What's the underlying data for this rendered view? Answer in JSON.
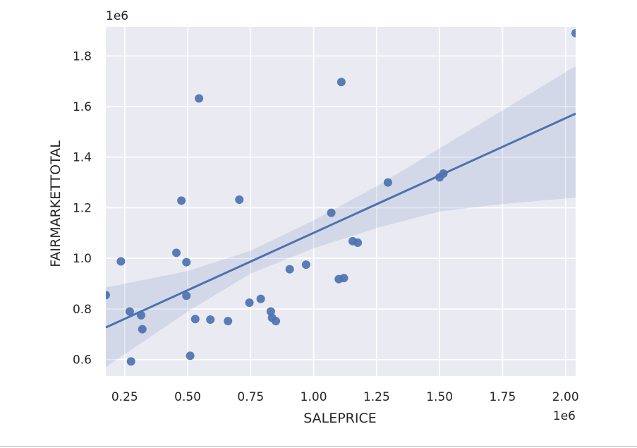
{
  "chart_data": {
    "type": "scatter",
    "xlabel": "SALEPRICE",
    "ylabel": "FAIRMARKETTOTAL",
    "x_scale_label": "1e6",
    "y_scale_label": "1e6",
    "xlim": [
      0.175,
      2.04
    ],
    "ylim": [
      0.535,
      1.915
    ],
    "x_ticks": [
      0.25,
      0.5,
      0.75,
      1.0,
      1.25,
      1.5,
      1.75,
      2.0
    ],
    "x_tick_labels": [
      "0.25",
      "0.50",
      "0.75",
      "1.00",
      "1.25",
      "1.50",
      "1.75",
      "2.00"
    ],
    "y_ticks": [
      0.6,
      0.8,
      1.0,
      1.2,
      1.4,
      1.6,
      1.8
    ],
    "y_tick_labels": [
      "0.6",
      "0.8",
      "1.0",
      "1.2",
      "1.4",
      "1.6",
      "1.8"
    ],
    "grid": true,
    "point_color": "#4c72b0",
    "line_color": "#4c72b0",
    "band_color": "#4c72b0",
    "background_color": "#eaeaf2",
    "points": [
      {
        "x": 0.175,
        "y": 0.855
      },
      {
        "x": 0.235,
        "y": 0.988
      },
      {
        "x": 0.27,
        "y": 0.79
      },
      {
        "x": 0.275,
        "y": 0.593
      },
      {
        "x": 0.315,
        "y": 0.775
      },
      {
        "x": 0.32,
        "y": 0.72
      },
      {
        "x": 0.455,
        "y": 1.022
      },
      {
        "x": 0.475,
        "y": 1.228
      },
      {
        "x": 0.495,
        "y": 0.985
      },
      {
        "x": 0.495,
        "y": 0.852
      },
      {
        "x": 0.51,
        "y": 0.615
      },
      {
        "x": 0.53,
        "y": 0.76
      },
      {
        "x": 0.545,
        "y": 1.632
      },
      {
        "x": 0.59,
        "y": 0.758
      },
      {
        "x": 0.66,
        "y": 0.752
      },
      {
        "x": 0.705,
        "y": 1.232
      },
      {
        "x": 0.745,
        "y": 0.825
      },
      {
        "x": 0.79,
        "y": 0.84
      },
      {
        "x": 0.83,
        "y": 0.79
      },
      {
        "x": 0.835,
        "y": 0.765
      },
      {
        "x": 0.85,
        "y": 0.752
      },
      {
        "x": 0.905,
        "y": 0.957
      },
      {
        "x": 0.97,
        "y": 0.975
      },
      {
        "x": 1.07,
        "y": 1.18
      },
      {
        "x": 1.1,
        "y": 0.918
      },
      {
        "x": 1.11,
        "y": 1.697
      },
      {
        "x": 1.12,
        "y": 0.922
      },
      {
        "x": 1.155,
        "y": 1.068
      },
      {
        "x": 1.175,
        "y": 1.062
      },
      {
        "x": 1.295,
        "y": 1.3
      },
      {
        "x": 1.5,
        "y": 1.32
      },
      {
        "x": 1.515,
        "y": 1.335
      },
      {
        "x": 2.04,
        "y": 1.89
      }
    ],
    "regression_line": [
      {
        "x": 0.175,
        "y": 0.727
      },
      {
        "x": 2.04,
        "y": 1.572
      }
    ],
    "confidence_band": {
      "x": [
        0.175,
        0.5,
        0.75,
        1.0,
        1.25,
        1.5,
        1.75,
        2.04
      ],
      "upper": [
        0.885,
        0.95,
        1.03,
        1.15,
        1.285,
        1.435,
        1.585,
        1.76
      ],
      "lower": [
        0.57,
        0.79,
        0.94,
        1.04,
        1.12,
        1.185,
        1.215,
        1.24
      ]
    }
  }
}
